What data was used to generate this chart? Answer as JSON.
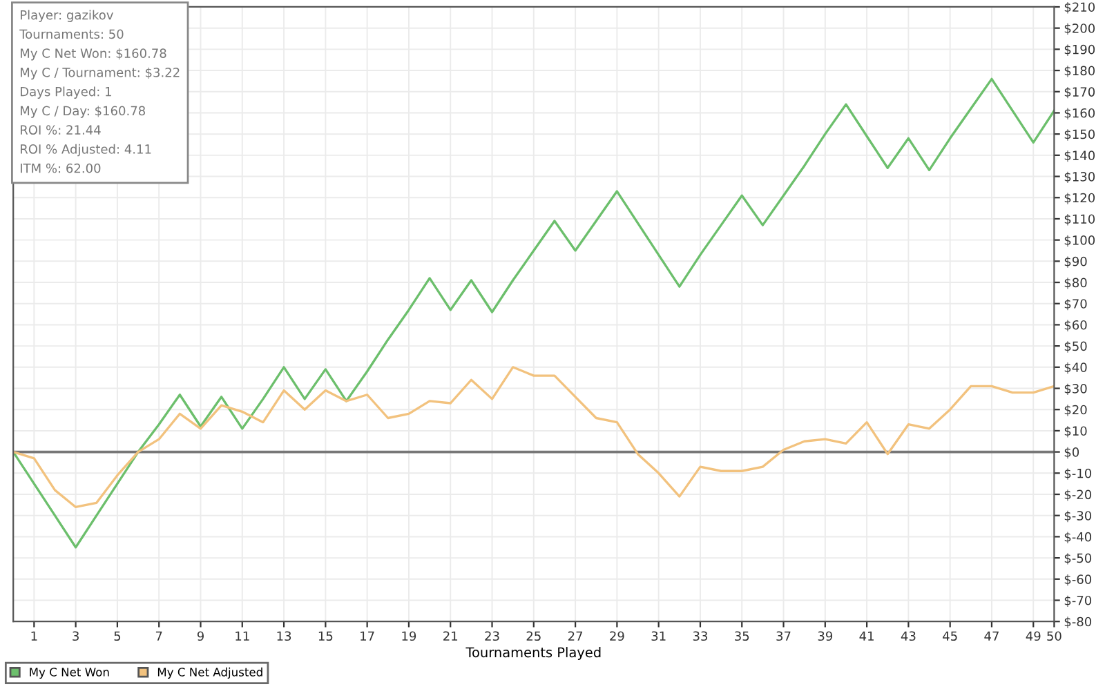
{
  "chart_data": {
    "type": "line",
    "xlabel": "Tournaments Played",
    "x": [
      0,
      1,
      2,
      3,
      4,
      5,
      6,
      7,
      8,
      9,
      10,
      11,
      12,
      13,
      14,
      15,
      16,
      17,
      18,
      19,
      20,
      21,
      22,
      23,
      24,
      25,
      26,
      27,
      28,
      29,
      30,
      31,
      32,
      33,
      34,
      35,
      36,
      37,
      38,
      39,
      40,
      41,
      42,
      43,
      44,
      45,
      46,
      47,
      48,
      49,
      50
    ],
    "series": [
      {
        "name": "My C Net Won",
        "color": "#6cbf6c",
        "values": [
          0,
          -15,
          -30,
          -45,
          -30,
          -15,
          0,
          13,
          27,
          12,
          26,
          11,
          25,
          40,
          25,
          39,
          24,
          38,
          53,
          67,
          82,
          67,
          81,
          66,
          81,
          95,
          109,
          95,
          109,
          123,
          108,
          93,
          78,
          93,
          107,
          121,
          107,
          121,
          135,
          150,
          164,
          149,
          134,
          148,
          133,
          148,
          162,
          176,
          161,
          146,
          161
        ]
      },
      {
        "name": "My C Net Adjusted",
        "color": "#f2c27e",
        "values": [
          0,
          -3,
          -18,
          -26,
          -24,
          -11,
          0,
          6,
          18,
          11,
          22,
          19,
          14,
          29,
          20,
          29,
          24,
          27,
          16,
          18,
          24,
          23,
          34,
          25,
          40,
          36,
          36,
          26,
          16,
          14,
          -1,
          -10,
          -21,
          -7,
          -9,
          -9,
          -7,
          1,
          5,
          6,
          4,
          14,
          -1,
          13,
          11,
          20,
          31,
          31,
          28,
          28,
          31
        ]
      }
    ],
    "xlim": [
      0,
      50
    ],
    "xticks": [
      1,
      3,
      5,
      7,
      9,
      11,
      13,
      15,
      17,
      19,
      21,
      23,
      25,
      27,
      29,
      31,
      33,
      35,
      37,
      39,
      41,
      43,
      45,
      47,
      49,
      50
    ],
    "ylim": [
      -80,
      210
    ],
    "yticks": [
      {
        "value": -80,
        "label": "$-80"
      },
      {
        "value": -70,
        "label": "$-70"
      },
      {
        "value": -60,
        "label": "$-60"
      },
      {
        "value": -50,
        "label": "$-50"
      },
      {
        "value": -40,
        "label": "$-40"
      },
      {
        "value": -30,
        "label": "$-30"
      },
      {
        "value": -20,
        "label": "$-20"
      },
      {
        "value": -10,
        "label": "$-10"
      },
      {
        "value": 0,
        "label": "$0"
      },
      {
        "value": 10,
        "label": "$10"
      },
      {
        "value": 20,
        "label": "$20"
      },
      {
        "value": 30,
        "label": "$30"
      },
      {
        "value": 40,
        "label": "$40"
      },
      {
        "value": 50,
        "label": "$50"
      },
      {
        "value": 60,
        "label": "$60"
      },
      {
        "value": 70,
        "label": "$70"
      },
      {
        "value": 80,
        "label": "$80"
      },
      {
        "value": 90,
        "label": "$90"
      },
      {
        "value": 100,
        "label": "$100"
      },
      {
        "value": 110,
        "label": "$110"
      },
      {
        "value": 120,
        "label": "$120"
      },
      {
        "value": 130,
        "label": "$130"
      },
      {
        "value": 140,
        "label": "$140"
      },
      {
        "value": 150,
        "label": "$150"
      },
      {
        "value": 160,
        "label": "$160"
      },
      {
        "value": 170,
        "label": "$170"
      },
      {
        "value": 180,
        "label": "$180"
      },
      {
        "value": 190,
        "label": "$190"
      },
      {
        "value": 200,
        "label": "$200"
      },
      {
        "value": 210,
        "label": "$210"
      }
    ],
    "ref_lines": [
      {
        "axis": "y",
        "value": 0,
        "color": "#777777"
      }
    ],
    "grid": true,
    "legend": "bottom left",
    "marker": "none",
    "line_style": "solid",
    "annotations": [
      "Player: gazikov",
      "Tournaments: 50",
      "My C Net Won: $160.78",
      "My C / Tournament: $3.22",
      "Days Played: 1",
      "My C / Day: $160.78",
      "ROI %: 21.44",
      "ROI % Adjusted: 4.11",
      "ITM %: 62.00"
    ]
  }
}
